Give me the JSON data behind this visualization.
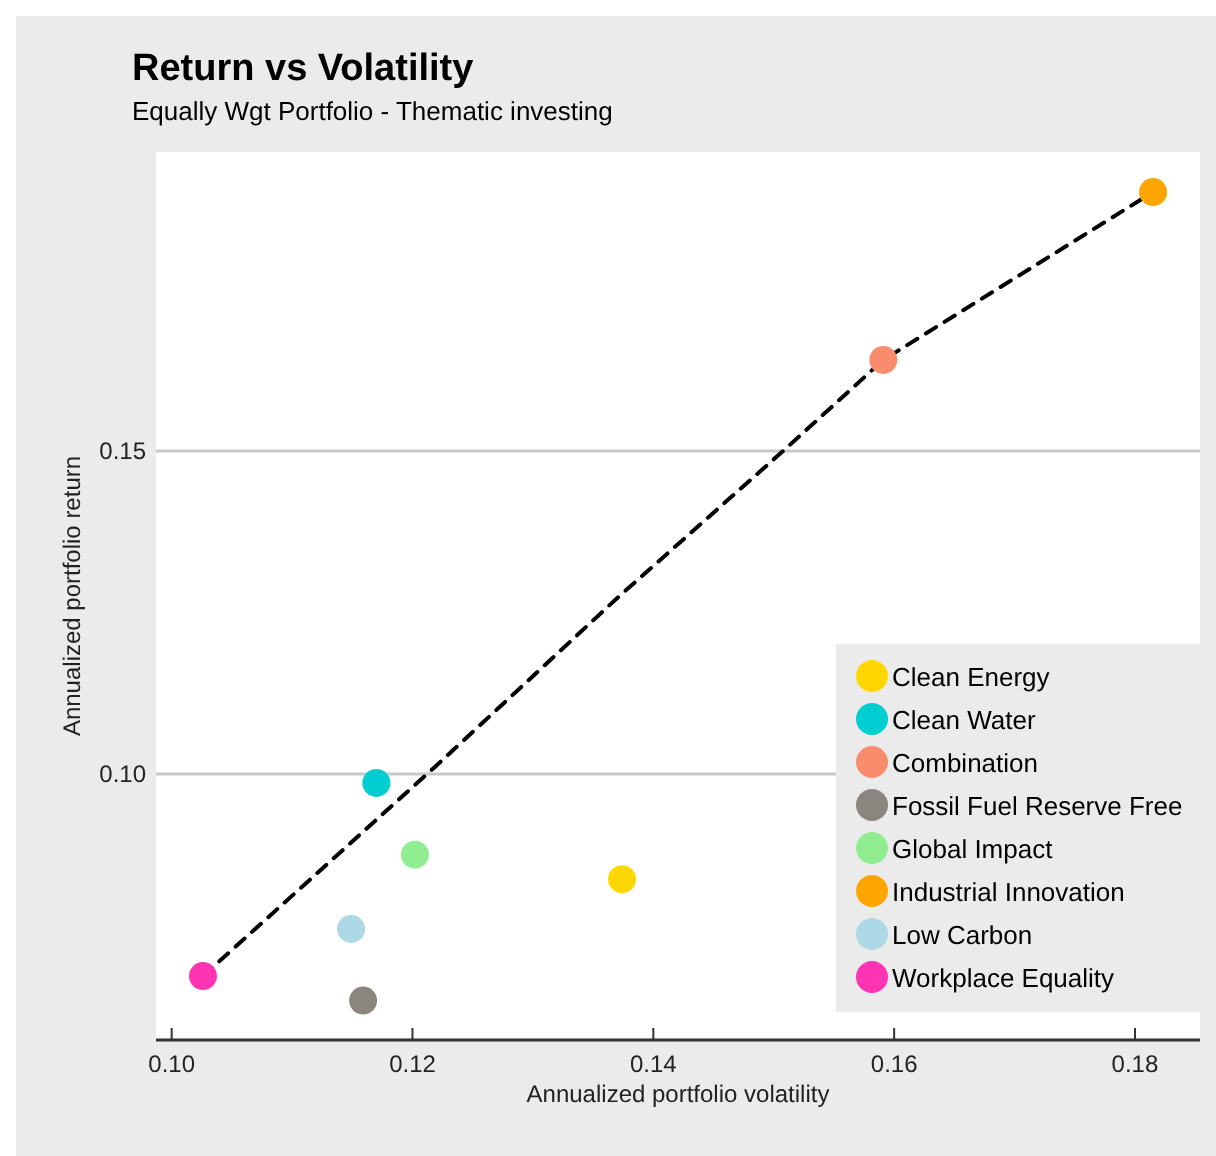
{
  "chart_data": {
    "type": "scatter",
    "title": "Return vs Volatility",
    "subtitle": "Equally Wgt Portfolio - Thematic investing",
    "xlabel": "Annualized portfolio volatility",
    "ylabel": "Annualized portfolio return",
    "xlim": [
      0.0987,
      0.1854
    ],
    "xticks": [
      {
        "value": 0.1,
        "label": "0.10"
      },
      {
        "value": 0.12,
        "label": "0.12"
      },
      {
        "value": 0.14,
        "label": "0.14"
      },
      {
        "value": 0.16,
        "label": "0.16"
      },
      {
        "value": 0.18,
        "label": "0.18"
      }
    ],
    "ylim": [
      0.0588,
      0.1963
    ],
    "yticks": [
      {
        "value": 0.1,
        "label": "0.10"
      },
      {
        "value": 0.15,
        "label": "0.15"
      }
    ],
    "grid": "y",
    "legend": "bottom right",
    "marker": "circle",
    "series": [
      {
        "type": "line",
        "color": "#000000",
        "line_style": "dashed",
        "marker": "none",
        "x": [
          0.1026,
          0.1217,
          0.1371,
          0.1509,
          0.1591,
          0.1815
        ],
        "values": [
          0.0687,
          0.1008,
          0.1274,
          0.1502,
          0.1641,
          0.1901
        ]
      },
      {
        "name": "Clean Energy",
        "color": "#ffd700",
        "x": [
          0.1374
        ],
        "values": [
          0.0837
        ]
      },
      {
        "name": "Clean Water",
        "color": "#00ced1",
        "x": [
          0.117
        ],
        "values": [
          0.0986
        ]
      },
      {
        "name": "Combination",
        "color": "#fa8c6e",
        "x": [
          0.1591
        ],
        "values": [
          0.1641
        ]
      },
      {
        "name": "Fossil Fuel Reserve Free",
        "color": "#8b8580",
        "x": [
          0.1159
        ],
        "values": [
          0.0649
        ]
      },
      {
        "name": "Global Impact",
        "color": "#90ee90",
        "x": [
          0.1202
        ],
        "values": [
          0.0875
        ]
      },
      {
        "name": "Industrial Innovation",
        "color": "#ffa500",
        "x": [
          0.1815
        ],
        "values": [
          0.1901
        ]
      },
      {
        "name": "Low Carbon",
        "color": "#add8e6",
        "x": [
          0.1149
        ],
        "values": [
          0.076
        ]
      },
      {
        "name": "Workplace Equality",
        "color": "#ff34b3",
        "x": [
          0.1026
        ],
        "values": [
          0.0687
        ]
      }
    ]
  }
}
